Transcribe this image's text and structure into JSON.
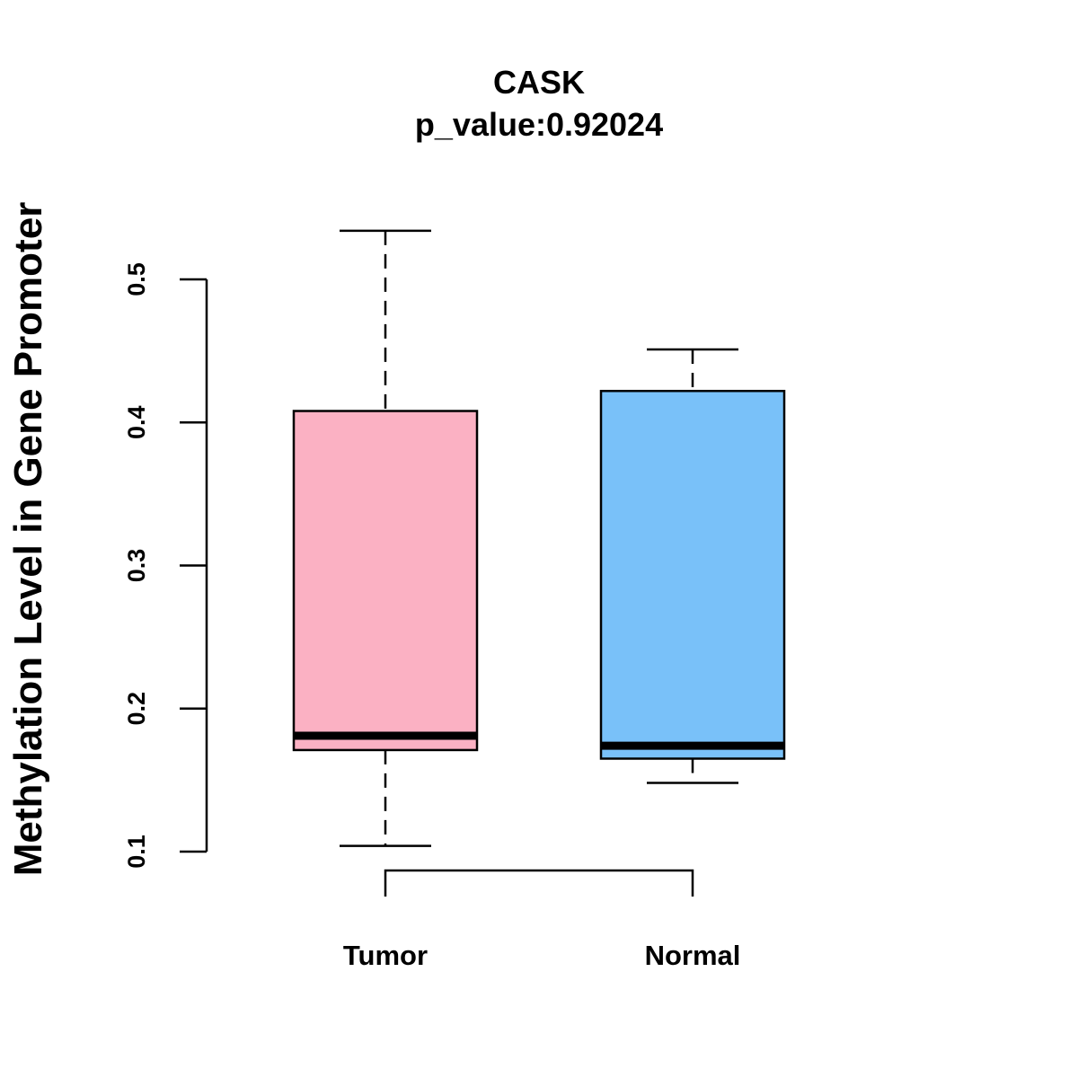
{
  "chart_data": {
    "type": "boxplot",
    "title": "CASK",
    "subtitle": "p_value:0.92024",
    "xlabel": "",
    "ylabel": "Methylation Level in Gene Promoter",
    "ylim": [
      0.1,
      0.5
    ],
    "yticks": [
      "0.1",
      "0.2",
      "0.3",
      "0.4",
      "0.5"
    ],
    "grid": false,
    "categories": [
      "Tumor",
      "Normal"
    ],
    "groups": [
      {
        "name": "Tumor",
        "whisker_low": 0.104,
        "q1": 0.171,
        "median": 0.181,
        "q3": 0.408,
        "whisker_high": 0.534,
        "color": "#FBB1C3"
      },
      {
        "name": "Normal",
        "whisker_low": 0.148,
        "q1": 0.165,
        "median": 0.174,
        "q3": 0.422,
        "whisker_high": 0.451,
        "color": "#79C1F9"
      }
    ],
    "comparison_bracket": {
      "from": "Tumor",
      "to": "Normal"
    }
  }
}
